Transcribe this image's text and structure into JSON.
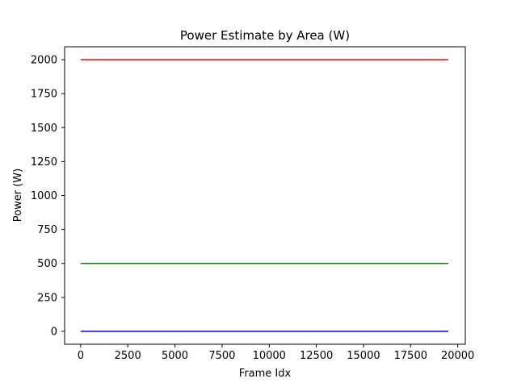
{
  "chart_data": {
    "type": "line",
    "title": "Power Estimate by Area (W)",
    "xlabel": "Frame Idx",
    "ylabel": "Power (W)",
    "xlim": [
      -850,
      20400
    ],
    "ylim": [
      -95,
      2095
    ],
    "xticks": [
      0,
      2500,
      5000,
      7500,
      10000,
      12500,
      15000,
      17500,
      20000
    ],
    "xtick_labels": [
      "0",
      "2500",
      "5000",
      "7500",
      "10000",
      "12500",
      "15000",
      "17500",
      "20000"
    ],
    "yticks": [
      0,
      250,
      500,
      750,
      1000,
      1250,
      1500,
      1750,
      2000
    ],
    "ytick_labels": [
      "0",
      "250",
      "500",
      "750",
      "1000",
      "1250",
      "1500",
      "1750",
      "2000"
    ],
    "grid": false,
    "legend": "none",
    "series": [
      {
        "color": "#ff0000",
        "x": [
          0,
          19500
        ],
        "y": [
          2000,
          2000
        ]
      },
      {
        "color": "#008000",
        "x": [
          0,
          19500
        ],
        "y": [
          500,
          500
        ]
      },
      {
        "color": "#0000ff",
        "x": [
          0,
          19500
        ],
        "y": [
          0,
          0
        ]
      }
    ]
  }
}
